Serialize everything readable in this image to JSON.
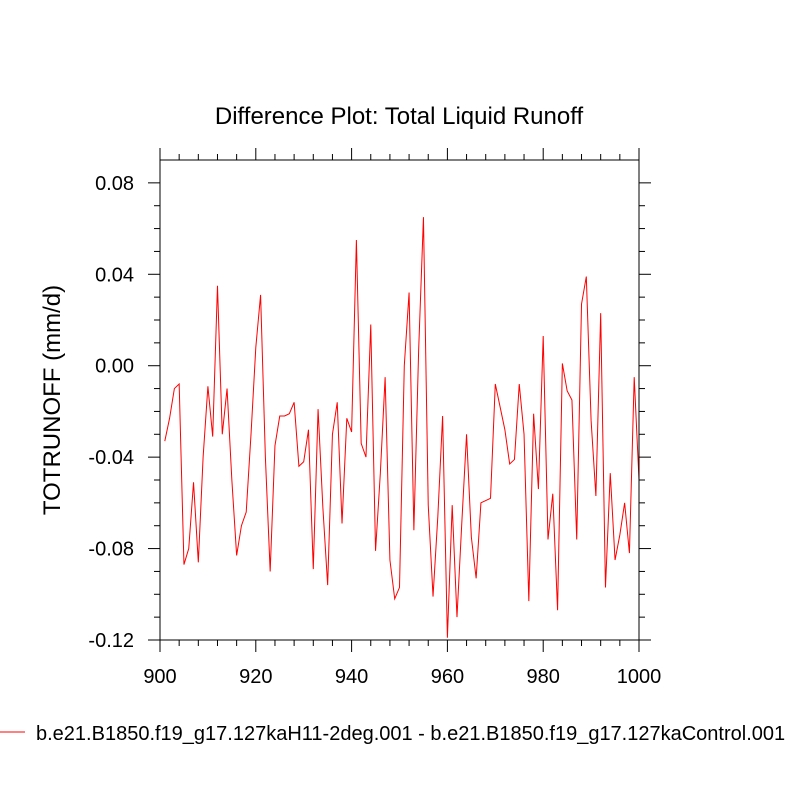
{
  "chart_data": {
    "type": "line",
    "title": "Difference Plot: Total Liquid Runoff",
    "xlabel": "",
    "ylabel": "TOTRUNOFF  (mm/d)",
    "xlim": [
      900,
      1000
    ],
    "ylim": [
      -0.12,
      0.09
    ],
    "xticks": [
      900,
      920,
      940,
      960,
      980,
      1000
    ],
    "xtick_labels": [
      "900",
      "920",
      "940",
      "960",
      "980",
      "1000"
    ],
    "yticks": [
      -0.12,
      -0.08,
      -0.04,
      0.0,
      0.04,
      0.08
    ],
    "ytick_labels": [
      "-0.12",
      "-0.08",
      "-0.04",
      "0.00",
      "0.04",
      "0.08"
    ],
    "grid": false,
    "legend": "bottom-left",
    "series": [
      {
        "name": "b.e21.B1850.f19_g17.127kaH11-2deg.001 - b.e21.B1850.f19_g17.127kaControl.001",
        "color": "#ff0000",
        "x": [
          901,
          902,
          903,
          904,
          905,
          906,
          907,
          908,
          909,
          910,
          911,
          912,
          913,
          914,
          915,
          916,
          917,
          918,
          919,
          920,
          921,
          922,
          923,
          924,
          925,
          926,
          927,
          928,
          929,
          930,
          931,
          932,
          933,
          934,
          935,
          936,
          937,
          938,
          939,
          940,
          941,
          942,
          943,
          944,
          945,
          946,
          947,
          948,
          949,
          950,
          951,
          952,
          953,
          954,
          955,
          956,
          957,
          958,
          959,
          960,
          961,
          962,
          963,
          964,
          965,
          966,
          967,
          968,
          969,
          970,
          971,
          972,
          973,
          974,
          975,
          976,
          977,
          978,
          979,
          980,
          981,
          982,
          983,
          984,
          985,
          986,
          987,
          988,
          989,
          990,
          991,
          992,
          993,
          994,
          995,
          996,
          997,
          998,
          999,
          1000
        ],
        "values": [
          -0.033,
          -0.023,
          -0.01,
          -0.008,
          -0.087,
          -0.08,
          -0.051,
          -0.086,
          -0.04,
          -0.009,
          -0.031,
          0.035,
          -0.03,
          -0.01,
          -0.05,
          -0.083,
          -0.07,
          -0.064,
          -0.03,
          0.008,
          0.031,
          -0.04,
          -0.09,
          -0.035,
          -0.022,
          -0.022,
          -0.021,
          -0.016,
          -0.044,
          -0.042,
          -0.028,
          -0.089,
          -0.019,
          -0.062,
          -0.096,
          -0.03,
          -0.016,
          -0.069,
          -0.023,
          -0.029,
          0.055,
          -0.034,
          -0.04,
          0.018,
          -0.081,
          -0.047,
          -0.005,
          -0.085,
          -0.102,
          -0.097,
          0.0,
          0.032,
          -0.072,
          0.007,
          0.065,
          -0.061,
          -0.101,
          -0.066,
          -0.022,
          -0.119,
          -0.061,
          -0.11,
          -0.069,
          -0.03,
          -0.075,
          -0.093,
          -0.06,
          -0.059,
          -0.058,
          -0.008,
          -0.018,
          -0.028,
          -0.043,
          -0.041,
          -0.008,
          -0.03,
          -0.103,
          -0.021,
          -0.054,
          0.013,
          -0.076,
          -0.056,
          -0.107,
          0.001,
          -0.011,
          -0.015,
          -0.076,
          0.027,
          0.039,
          -0.024,
          -0.057,
          0.023,
          -0.097,
          -0.047,
          -0.085,
          -0.074,
          -0.06,
          -0.082,
          -0.005,
          -0.05
        ]
      }
    ]
  }
}
